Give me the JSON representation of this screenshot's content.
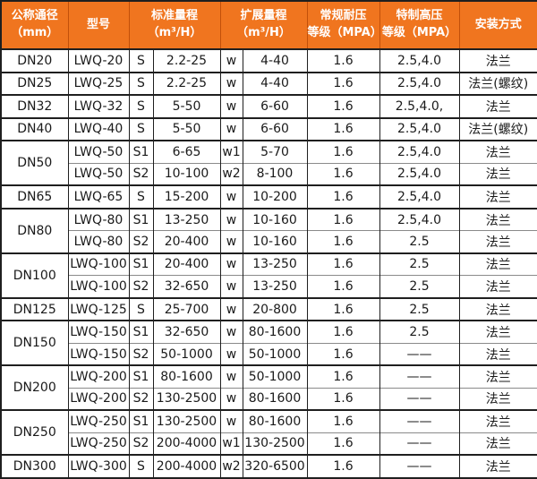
{
  "accent_color": "#f0751f",
  "header_text_color": "#ffffff",
  "border_color": "#1f1f1f",
  "table": {
    "header": {
      "dn": "公称通径\n（mm）",
      "model": "型号",
      "standard_range": "标准量程\n（m³/H）",
      "extended_range": "扩展量程\n（m³/H）",
      "normal_pressure": "常规耐压\n等级（MPA）",
      "high_pressure": "特制高压\n等级（MPA）",
      "installation": "安装方式"
    },
    "rows": [
      {
        "dn": "DN20",
        "dn_span": 1,
        "model": "LWQ-20",
        "s": "S",
        "std": "2.2-25",
        "w": "w",
        "ext": "4-40",
        "pn": "1.6",
        "hp": "2.5,4.0",
        "mount": "法兰"
      },
      {
        "dn": "DN25",
        "dn_span": 1,
        "model": "LWQ-25",
        "s": "S",
        "std": "2.2-25",
        "w": "w",
        "ext": "4-40",
        "pn": "1.6",
        "hp": "2.5,4.0",
        "mount": "法兰(螺纹)"
      },
      {
        "dn": "DN32",
        "dn_span": 1,
        "model": "LWQ-32",
        "s": "S",
        "std": "5-50",
        "w": "w",
        "ext": "6-60",
        "pn": "1.6",
        "hp": "2.5,4.0,",
        "mount": "法兰"
      },
      {
        "dn": "DN40",
        "dn_span": 1,
        "model": "LWQ-40",
        "s": "S",
        "std": "5-50",
        "w": "w",
        "ext": "6-60",
        "pn": "1.6",
        "hp": "2.5,4.0",
        "mount": "法兰(螺纹)"
      },
      {
        "dn": "DN50",
        "dn_span": 2,
        "model": "LWQ-50",
        "s": "S1",
        "std": "6-65",
        "w": "w1",
        "ext": "5-70",
        "pn": "1.6",
        "hp": "2.5,4.0",
        "mount": "法兰"
      },
      {
        "dn": null,
        "model": "LWQ-50",
        "s": "S2",
        "std": "10-100",
        "w": "w2",
        "ext": "8-100",
        "pn": "1.6",
        "hp": "2.5,4.0",
        "mount": "法兰"
      },
      {
        "dn": "DN65",
        "dn_span": 1,
        "model": "LWQ-65",
        "s": "S",
        "std": "15-200",
        "w": "w",
        "ext": "10-200",
        "pn": "1.6",
        "hp": "2.5,4.0",
        "mount": "法兰"
      },
      {
        "dn": "DN80",
        "dn_span": 2,
        "model": "LWQ-80",
        "s": "S1",
        "std": "13-250",
        "w": "w",
        "ext": "10-160",
        "pn": "1.6",
        "hp": "2.5,4.0",
        "mount": "法兰"
      },
      {
        "dn": null,
        "model": "LWQ-80",
        "s": "S2",
        "std": "20-400",
        "w": "w",
        "ext": "10-160",
        "pn": "1.6",
        "hp": "2.5",
        "mount": "法兰"
      },
      {
        "dn": "DN100",
        "dn_span": 2,
        "model": "LWQ-100",
        "s": "S1",
        "std": "20-400",
        "w": "w",
        "ext": "13-250",
        "pn": "1.6",
        "hp": "2.5",
        "mount": "法兰"
      },
      {
        "dn": null,
        "model": "LWQ-100",
        "s": "S2",
        "std": "32-650",
        "w": "w",
        "ext": "13-250",
        "pn": "1.6",
        "hp": "2.5",
        "mount": "法兰"
      },
      {
        "dn": "DN125",
        "dn_span": 1,
        "model": "LWQ-125",
        "s": "S",
        "std": "25-700",
        "w": "w",
        "ext": "20-800",
        "pn": "1.6",
        "hp": "2.5",
        "mount": "法兰"
      },
      {
        "dn": "DN150",
        "dn_span": 2,
        "model": "LWQ-150",
        "s": "S1",
        "std": "32-650",
        "w": "w",
        "ext": "80-1600",
        "pn": "1.6",
        "hp": "2.5",
        "mount": "法兰"
      },
      {
        "dn": null,
        "model": "LWQ-150",
        "s": "S2",
        "std": "50-1000",
        "w": "w",
        "ext": "50-1000",
        "pn": "1.6",
        "hp": "——",
        "mount": "法兰"
      },
      {
        "dn": "DN200",
        "dn_span": 2,
        "model": "LWQ-200",
        "s": "S1",
        "std": "80-1600",
        "w": "w",
        "ext": "50-1000",
        "pn": "1.6",
        "hp": "——",
        "mount": "法兰"
      },
      {
        "dn": null,
        "model": "LWQ-200",
        "s": "S2",
        "std": "130-2500",
        "w": "w",
        "ext": "80-1600",
        "pn": "1.6",
        "hp": "——",
        "mount": "法兰"
      },
      {
        "dn": "DN250",
        "dn_span": 2,
        "model": "LWQ-250",
        "s": "S1",
        "std": "130-2500",
        "w": "w",
        "ext": "80-1600",
        "pn": "1.6",
        "hp": "——",
        "mount": "法兰"
      },
      {
        "dn": null,
        "model": "LWQ-250",
        "s": "S2",
        "std": "200-4000",
        "w": "w1",
        "ext": "130-2500",
        "pn": "1.6",
        "hp": "——",
        "mount": "法兰"
      },
      {
        "dn": "DN300",
        "dn_span": 1,
        "model": "LWQ-300",
        "s": "S",
        "std": "200-4000",
        "w": "w2",
        "ext": "320-6500",
        "pn": "1.6",
        "hp": "——",
        "mount": "法兰"
      }
    ]
  }
}
